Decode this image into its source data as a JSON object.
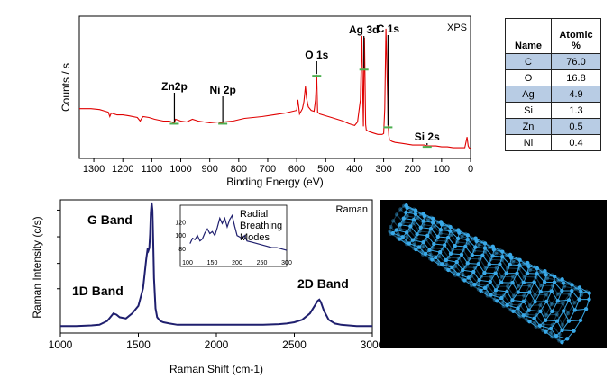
{
  "chart_data": [
    {
      "type": "line",
      "corner_label": "XPS",
      "xlabel": "Binding Energy (eV)",
      "ylabel": "Counts / s",
      "xlim": [
        1350,
        0
      ],
      "x_ticks": [
        1300,
        1200,
        1100,
        1000,
        900,
        800,
        700,
        600,
        500,
        400,
        300,
        200,
        100,
        0
      ],
      "line_color": "#e00000",
      "series": [
        {
          "x": [
            1350,
            1310,
            1280,
            1260,
            1250,
            1245,
            1240,
            1220,
            1200,
            1180,
            1150,
            1140,
            1135,
            1130,
            1110,
            1090,
            1060,
            1040,
            1022,
            1018,
            1000,
            980,
            960,
            940,
            900,
            870,
            860,
            850,
            820,
            780,
            720,
            680,
            640,
            600,
            596,
            590,
            580,
            575,
            570,
            566,
            560,
            550,
            540,
            535,
            531,
            528,
            520,
            500,
            480,
            460,
            440,
            420,
            400,
            390,
            380,
            375,
            372,
            370,
            368,
            366,
            362,
            360,
            350,
            340,
            330,
            320,
            305,
            300,
            296,
            292,
            287,
            284,
            282,
            280,
            276,
            270,
            260,
            240,
            220,
            200,
            180,
            160,
            150,
            140,
            120,
            100,
            80,
            60,
            40,
            20,
            12,
            8,
            5,
            0
          ],
          "y": [
            50,
            50,
            49,
            47,
            46,
            41,
            45,
            43,
            43,
            42,
            40,
            36,
            39,
            41,
            40,
            38,
            36,
            36,
            34,
            38,
            36,
            35,
            38,
            36,
            34,
            35,
            34,
            35,
            36,
            39,
            41,
            43,
            45,
            48,
            60,
            44,
            50,
            58,
            75,
            62,
            52,
            48,
            47,
            60,
            88,
            46,
            44,
            42,
            40,
            38,
            36,
            33,
            31,
            35,
            60,
            132,
            70,
            30,
            95,
            130,
            32,
            26,
            24,
            23,
            22,
            21,
            21,
            22,
            50,
            140,
            75,
            30,
            20,
            15,
            14,
            13,
            12,
            11,
            10,
            9,
            9,
            9,
            8,
            8,
            8,
            7,
            7,
            6,
            6,
            6,
            18,
            8,
            6,
            5
          ]
        }
      ],
      "annotations": [
        {
          "text": "Zn2p",
          "x": 1022
        },
        {
          "text": "Ni 2p",
          "x": 855
        },
        {
          "text": "O 1s",
          "x": 531
        },
        {
          "text": "Ag 3d",
          "x": 368
        },
        {
          "text": "C 1s",
          "x": 285
        },
        {
          "text": "Si 2s",
          "x": 150
        }
      ]
    },
    {
      "type": "line",
      "corner_label": "Raman",
      "xlabel": "Raman Shift (cm-1)",
      "ylabel": "Raman Intensity (c/s)",
      "xlim": [
        1000,
        3000
      ],
      "x_ticks": [
        1000,
        1500,
        2000,
        2500,
        3000
      ],
      "line_color": "#1f1f6e",
      "series": [
        {
          "x": [
            1000,
            1100,
            1200,
            1250,
            1300,
            1320,
            1340,
            1360,
            1380,
            1420,
            1460,
            1500,
            1530,
            1550,
            1560,
            1565,
            1570,
            1575,
            1580,
            1585,
            1590,
            1595,
            1600,
            1610,
            1620,
            1640,
            1660,
            1700,
            1750,
            1800,
            1900,
            2000,
            2100,
            2200,
            2300,
            2400,
            2450,
            2500,
            2550,
            2600,
            2630,
            2650,
            2660,
            2670,
            2690,
            2720,
            2760,
            2800,
            2900,
            3000
          ],
          "y": [
            2,
            2,
            2.5,
            3,
            6,
            9,
            12,
            11,
            9,
            8,
            12,
            18,
            32,
            55,
            64,
            62,
            64,
            75,
            92,
            100,
            94,
            70,
            40,
            16,
            9,
            6,
            5,
            4,
            3,
            3,
            3,
            3,
            3,
            3,
            3,
            3.5,
            4,
            5,
            7,
            12,
            18,
            22,
            23,
            21,
            14,
            7,
            4,
            3,
            2,
            2
          ]
        }
      ],
      "annotations": [
        {
          "text": "G Band"
        },
        {
          "text": "1D Band"
        },
        {
          "text": "2D Band"
        }
      ],
      "inset": {
        "label": [
          "Radial",
          "Breathing",
          "Modes"
        ],
        "xlim": [
          100,
          300
        ],
        "ylim": [
          70,
          140
        ],
        "x_ticks": [
          100,
          150,
          200,
          250,
          300
        ],
        "y_ticks": [
          80,
          100,
          120
        ],
        "series": [
          {
            "x": [
              105,
              110,
              115,
              120,
              125,
              130,
              135,
              140,
              145,
              150,
              155,
              160,
              165,
              170,
              175,
              180,
              185,
              190,
              195,
              200,
              205,
              210,
              215,
              220,
              230,
              240,
              250,
              260,
              270,
              280,
              290,
              300
            ],
            "y": [
              88,
              96,
              94,
              100,
              92,
              95,
              104,
              110,
              103,
              106,
              100,
              112,
              126,
              118,
              126,
              113,
              124,
              130,
              114,
              100,
              98,
              95,
              100,
              92,
              90,
              88,
              86,
              84,
              82,
              82,
              80,
              78
            ]
          }
        ]
      }
    }
  ],
  "table": {
    "headers": [
      "Name",
      "Atomic\n%"
    ],
    "header_name": "Name",
    "header_atomic_1": "Atomic",
    "header_atomic_2": "%",
    "rows": [
      {
        "name": "C",
        "value": "76.0"
      },
      {
        "name": "O",
        "value": "16.8"
      },
      {
        "name": "Ag",
        "value": "4.9"
      },
      {
        "name": "Si",
        "value": "1.3"
      },
      {
        "name": "Zn",
        "value": "0.5"
      },
      {
        "name": "Ni",
        "value": "0.4"
      }
    ],
    "shade_color": "#b8cce4"
  },
  "image": {
    "subject": "carbon-nanotube",
    "background": "#000000",
    "atom_color": "#39a9e8"
  }
}
